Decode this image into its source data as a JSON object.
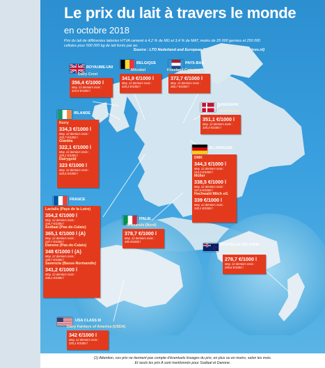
{
  "header": {
    "title": "Le prix du lait à travers le monde",
    "subtitle": "en octobre 2018",
    "description": "Prix du lait de différentes laiteries HTVA ramené à 4,2 % de MG et 3,4 % de MAT, moins de 25 000 germes et 250 000 cellules pour 500 000 kg de lait livrés par an.",
    "source": "Source : LTO Nederland and European Dairy Farmers (www.milkprices.nl)"
  },
  "avg_label": "Moy. 12 derniers mois :",
  "countries": {
    "uk": {
      "name": "ROYAUME-UNI",
      "dairies": [
        {
          "name": "Dairy Crest",
          "price": "356,4 €/1000 l",
          "avg": "324,9 €/1000 l"
        }
      ]
    },
    "be": {
      "name": "BELGIQUE",
      "dairies": [
        {
          "name": "Milcobel",
          "price": "341,9 €/1000 l",
          "avg": "329,3 €/1000 l"
        }
      ]
    },
    "nl": {
      "name": "PAYS-BAS",
      "dairies": [
        {
          "name": "Friesland Campina",
          "price": "372,7 €/1000 l",
          "avg": "360,7 €/1000 l"
        }
      ]
    },
    "dk": {
      "name": "DANEMARK",
      "dairies": [
        {
          "name": "Arla Foods",
          "price": "351,1 €/1000 l",
          "avg": "335,3 €/1000 l"
        }
      ]
    },
    "ie": {
      "name": "IRLANDE",
      "dairies": [
        {
          "name": "Kerry",
          "price": "334,3 €/1000 l",
          "avg": "333,7 €/1000 l"
        },
        {
          "name": "Glanbia",
          "price": "322,1 €/1000 l",
          "avg": "325,1 €/1000 l"
        },
        {
          "name": "Dairygold",
          "price": "323 €/1000 l",
          "avg": "320,6 €/1000 l"
        }
      ]
    },
    "de": {
      "name": "ALLEMAGNE",
      "dairies": [
        {
          "name": "DMK",
          "price": "344,3 €/1000 l",
          "avg": "314,3 €/1000 l"
        },
        {
          "name": "Müller",
          "price": "338,5 €/1000 l",
          "avg": "327,6 €/1000 l"
        },
        {
          "name": "Hochwald Milch eG",
          "price": "339 €/1000 l",
          "avg": "340,1 €/1000 l"
        }
      ]
    },
    "fr": {
      "name": "FRANCE",
      "dairies": [
        {
          "name": "Lactalis (Pays de la Loire)",
          "price": "354,2 €/1000 l",
          "avg": "336,7 €/1000 l"
        },
        {
          "name": "Sodiaal (Pas-de-Calais)",
          "price": "365,1 €/1000 l (A)",
          "avg": "347,7 €/1000 l"
        },
        {
          "name": "Danone (Pas-de-Calais)",
          "price": "348 €/1000 l (A)",
          "avg": "349,7 €/1000 l"
        },
        {
          "name": "Savencia (Basse-Normandie)",
          "price": "341,2 €/1000 l",
          "avg": "338,1 €/1000 l"
        }
      ]
    },
    "it": {
      "name": "ITALIE",
      "dairies": [
        {
          "name": "Granarolo (Nord)",
          "price": "378,7 €/1000 l",
          "avg": "390 €/1000 l"
        }
      ]
    },
    "nz": {
      "name": "NOUVELLE-ZÉLANDE",
      "dairies": [
        {
          "name": "Fonterra",
          "price": "278,7 €/1000 l",
          "avg": "295,8 €/1000 l"
        }
      ]
    },
    "us": {
      "name": "USA class III",
      "dairies": [
        {
          "name": "Dairy Farmers of America (USDA)",
          "price": "342 €/1000 l",
          "avg": "320,1 €/1000 l"
        }
      ]
    }
  },
  "footer": {
    "line1": "(1) Attention, ces prix ne tiennent pas compte d'éventuels lissages du prix, en plus ou en moins, selon les mois.",
    "line2": "Et seuls les prix A sont mentionnés pour Sodiaal et Danone."
  },
  "colors": {
    "box": "#e33a1d",
    "ocean": "#2b8fd0",
    "land": "#d7e6ef",
    "sea_globe": "#7fc6ea"
  }
}
